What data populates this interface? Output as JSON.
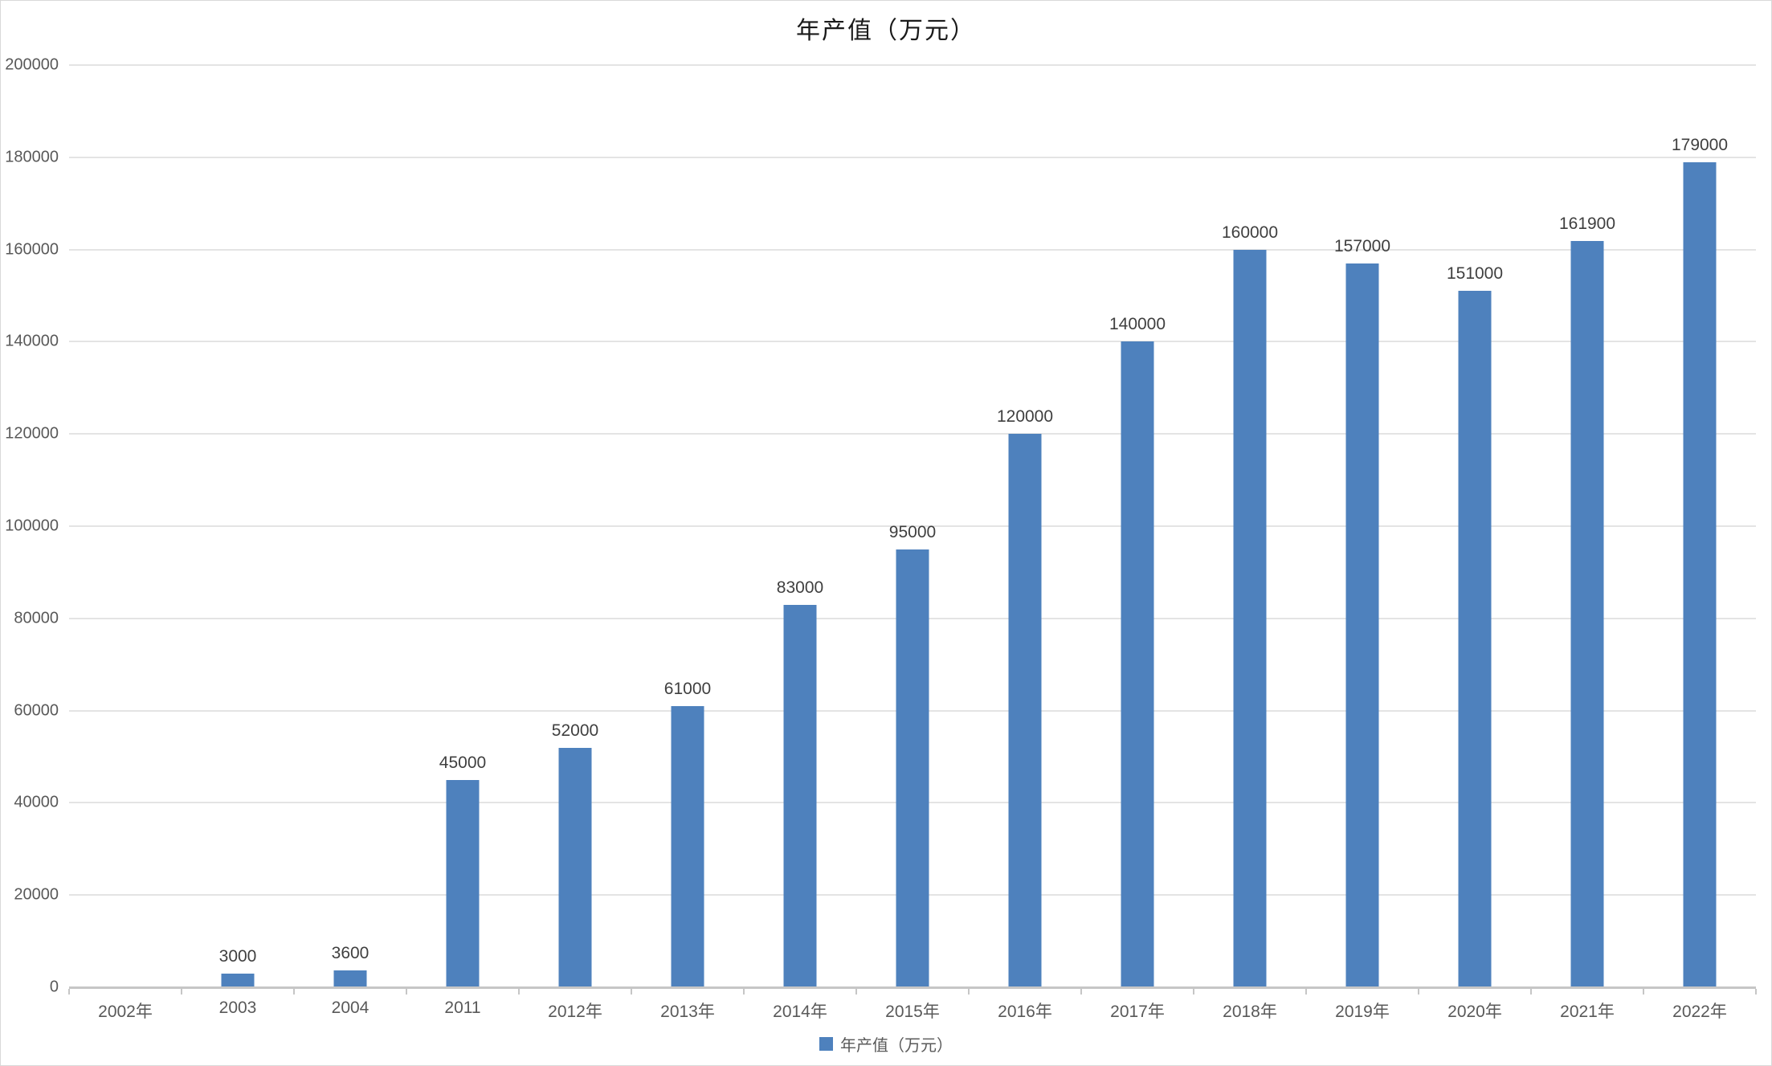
{
  "title": "年产值（万元）",
  "legend": {
    "label": "年产值（万元）",
    "marker_color": "#4e81bd"
  },
  "colors": {
    "bar": "#4e81bd",
    "gridline": "#e4e4e4",
    "axis_line": "#c6c6c6",
    "axis_text": "#595959",
    "data_label_text": "#3f3f3f",
    "title_text": "#1a1a1a",
    "frame_border": "#d9d9d9",
    "background": "#ffffff"
  },
  "chart_data": {
    "type": "bar",
    "title": "年产值（万元）",
    "series_name": "年产值（万元）",
    "categories": [
      "2002年",
      "2003",
      "2004",
      "2011",
      "2012年",
      "2013年",
      "2014年",
      "2015年",
      "2016年",
      "2017年",
      "2018年",
      "2019年",
      "2020年",
      "2021年",
      "2022年"
    ],
    "values": [
      null,
      3000,
      3600,
      45000,
      52000,
      61000,
      83000,
      95000,
      120000,
      140000,
      160000,
      157000,
      151000,
      161900,
      179000
    ],
    "data_labels": [
      "",
      "3000",
      "3600",
      "45000",
      "52000",
      "61000",
      "83000",
      "95000",
      "120000",
      "140000",
      "160000",
      "157000",
      "151000",
      "161900",
      "179000"
    ],
    "xlabel": "",
    "ylabel": "",
    "ylim": [
      0,
      200000
    ],
    "ytick_step": 20000,
    "ytick_labels": [
      "0",
      "20000",
      "40000",
      "60000",
      "80000",
      "100000",
      "120000",
      "140000",
      "160000",
      "180000",
      "200000"
    ],
    "grid": true,
    "gridlines": "horizontal",
    "legend_position": "bottom",
    "bar_color": "#4e81bd"
  }
}
